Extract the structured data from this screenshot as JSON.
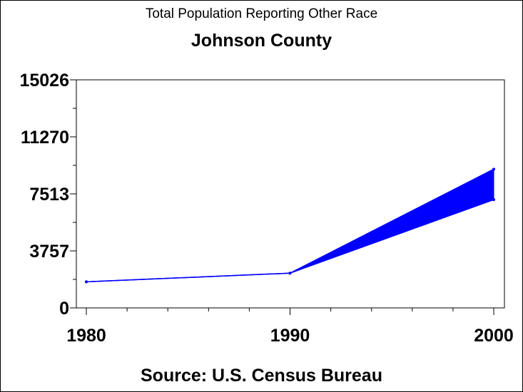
{
  "chart_data": {
    "type": "area",
    "title": "Total Population Reporting Other Race",
    "subtitle": "Johnson County",
    "footnote": "Source: U.S. Census Bureau",
    "x": [
      1980,
      1990,
      2000
    ],
    "series": [
      {
        "values": [
          1720,
          2290,
          9140
        ]
      },
      {
        "values": [
          1720,
          2290,
          7130
        ]
      }
    ],
    "x_ticks": [
      "1980",
      "1990",
      "2000"
    ],
    "y_ticks": [
      "0",
      "3757",
      "7513",
      "11270",
      "15026"
    ],
    "y_tick_values": [
      0,
      3757,
      7513,
      11270,
      15026
    ],
    "xlim": [
      1980,
      2000
    ],
    "ylim": [
      0,
      15026
    ],
    "grid": false,
    "colors": {
      "series": "#0000ff",
      "axis": "#000000",
      "background": "#ffffff"
    }
  }
}
